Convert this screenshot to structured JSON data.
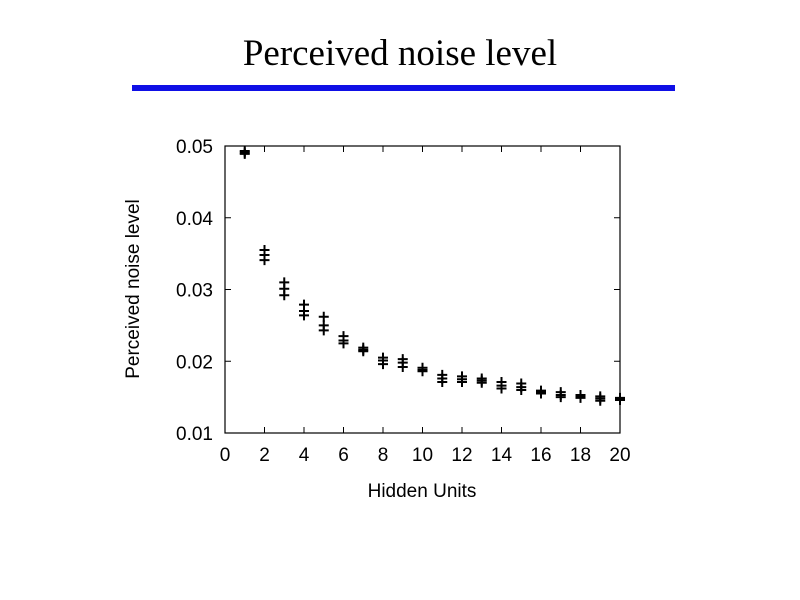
{
  "slide": {
    "title": "Perceived noise level",
    "rule_color": "#0f0fe6"
  },
  "chart_data": {
    "type": "scatter",
    "title": "",
    "xlabel": "Hidden Units",
    "ylabel": "Perceived noise level",
    "xlim": [
      0,
      20
    ],
    "ylim": [
      0.01,
      0.05
    ],
    "xticks": [
      "0",
      "2",
      "4",
      "6",
      "8",
      "10",
      "12",
      "14",
      "16",
      "18",
      "20"
    ],
    "yticks": [
      "0.01",
      "0.02",
      "0.03",
      "0.04",
      "0.05"
    ],
    "grid": false,
    "marker": "plus",
    "points": [
      [
        1,
        0.0493
      ],
      [
        1,
        0.0491
      ],
      [
        1,
        0.0489
      ],
      [
        2,
        0.0355
      ],
      [
        2,
        0.0348
      ],
      [
        2,
        0.0341
      ],
      [
        3,
        0.031
      ],
      [
        3,
        0.0301
      ],
      [
        3,
        0.0292
      ],
      [
        4,
        0.0279
      ],
      [
        4,
        0.027
      ],
      [
        4,
        0.0264
      ],
      [
        5,
        0.0262
      ],
      [
        5,
        0.025
      ],
      [
        5,
        0.0243
      ],
      [
        6,
        0.0235
      ],
      [
        6,
        0.0229
      ],
      [
        6,
        0.0225
      ],
      [
        7,
        0.0219
      ],
      [
        7,
        0.0216
      ],
      [
        7,
        0.0214
      ],
      [
        8,
        0.0205
      ],
      [
        8,
        0.0201
      ],
      [
        8,
        0.0196
      ],
      [
        9,
        0.0203
      ],
      [
        9,
        0.0198
      ],
      [
        9,
        0.0192
      ],
      [
        10,
        0.0191
      ],
      [
        10,
        0.0188
      ],
      [
        10,
        0.0186
      ],
      [
        11,
        0.0181
      ],
      [
        11,
        0.0176
      ],
      [
        11,
        0.0171
      ],
      [
        12,
        0.0179
      ],
      [
        12,
        0.0175
      ],
      [
        12,
        0.0171
      ],
      [
        13,
        0.0176
      ],
      [
        13,
        0.0173
      ],
      [
        13,
        0.017
      ],
      [
        14,
        0.0171
      ],
      [
        14,
        0.0166
      ],
      [
        14,
        0.0162
      ],
      [
        15,
        0.0169
      ],
      [
        15,
        0.0164
      ],
      [
        15,
        0.016
      ],
      [
        16,
        0.0159
      ],
      [
        16,
        0.0157
      ],
      [
        16,
        0.0155
      ],
      [
        17,
        0.0157
      ],
      [
        17,
        0.0153
      ],
      [
        17,
        0.015
      ],
      [
        18,
        0.0153
      ],
      [
        18,
        0.0151
      ],
      [
        18,
        0.0149
      ],
      [
        19,
        0.0151
      ],
      [
        19,
        0.0148
      ],
      [
        19,
        0.0145
      ],
      [
        20,
        0.0149
      ],
      [
        20,
        0.0147
      ],
      [
        20,
        0.0146
      ]
    ]
  }
}
